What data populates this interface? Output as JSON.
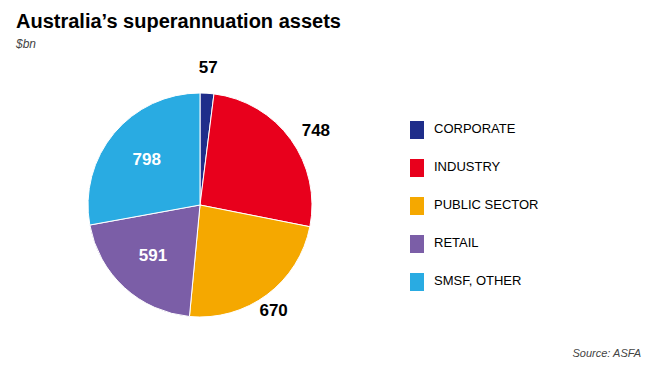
{
  "chart_data": {
    "type": "pie",
    "title": "Australia’s superannuation assets",
    "subtitle": "$bn",
    "annotations": [
      "Source: ASFA"
    ],
    "categories": [
      "CORPORATE",
      "INDUSTRY",
      "PUBLIC SECTOR",
      "RETAIL",
      "SMSF, OTHER"
    ],
    "values": [
      57,
      748,
      670,
      591,
      798
    ],
    "colors": [
      "#1f2d8a",
      "#e8001c",
      "#f5a800",
      "#7b5ea7",
      "#29abe2"
    ],
    "data_labels": true,
    "legend": "right"
  }
}
